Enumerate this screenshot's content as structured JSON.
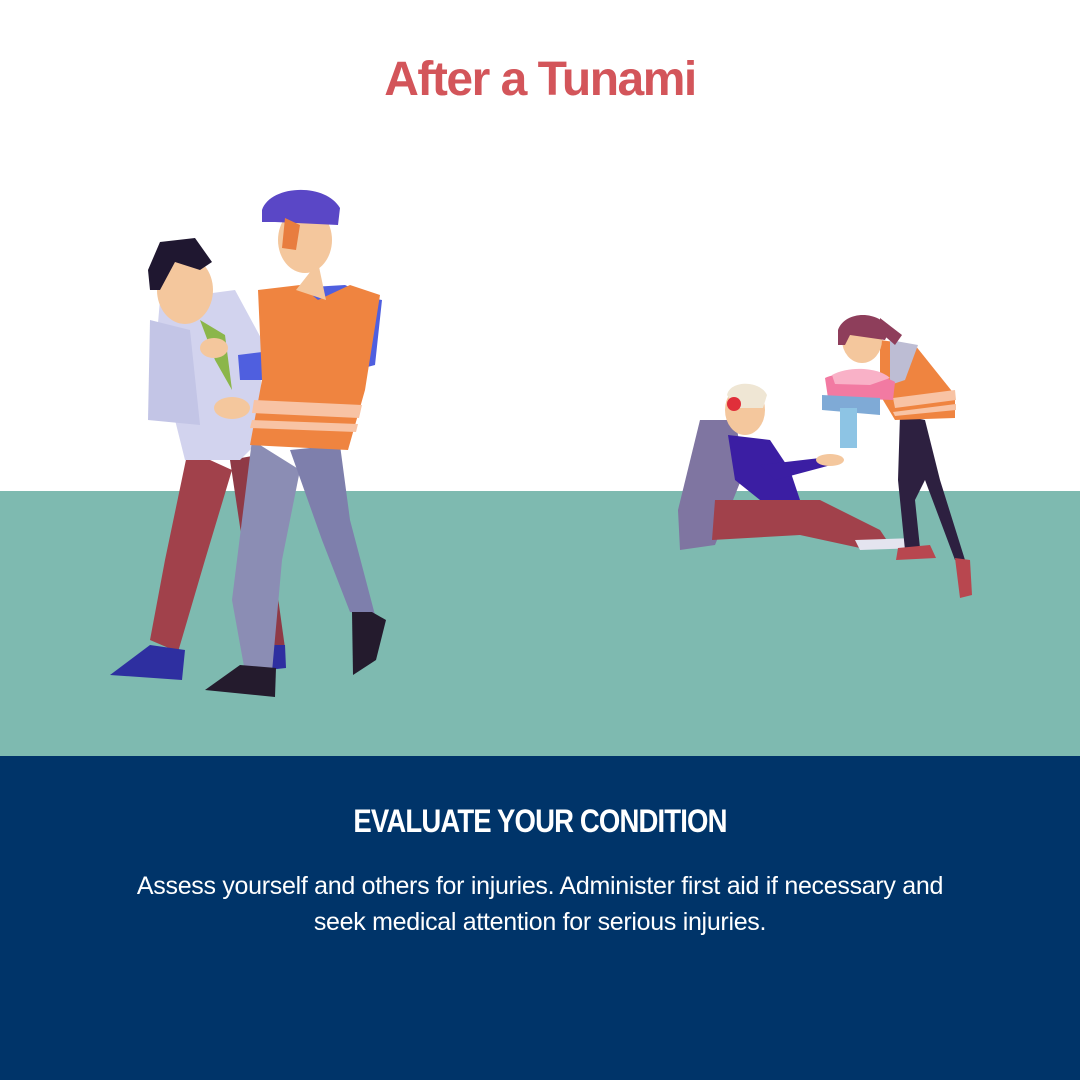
{
  "header": {
    "title": "After a Tunami"
  },
  "card": {
    "heading": "EVALUATE YOUR CONDITION",
    "body": "Assess yourself and others for injuries. Administer first aid if necessary and seek medical attention for serious injuries."
  },
  "illustrations": [
    {
      "icon": "rescuer-supporting-injured-person-illustration"
    },
    {
      "icon": "rescuer-giving-aid-to-seated-injured-person-illustration"
    }
  ],
  "colors": {
    "title": "#d3555a",
    "ground": "#7ebab0",
    "panel": "#003469",
    "vest": "#ef8440",
    "sleeve": "#4f5fdf"
  }
}
